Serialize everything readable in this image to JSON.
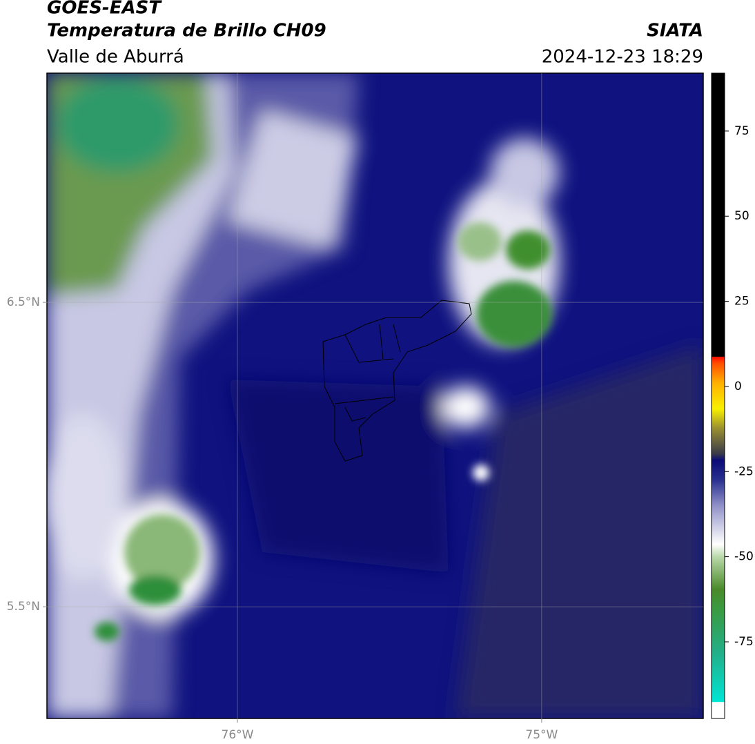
{
  "header": {
    "title": "GOES-EAST",
    "subtitle": "Temperatura de Brillo CH09",
    "region": "Valle de Aburrá",
    "source": "SIATA",
    "datetime": "2024-12-23 18:29"
  },
  "map": {
    "type": "map",
    "xlim": [
      -76.626,
      -74.469
    ],
    "ylim": [
      5.133,
      7.253
    ],
    "xticks": [
      {
        "value": -76,
        "label": "76°W"
      },
      {
        "value": -75,
        "label": "75°W"
      }
    ],
    "yticks": [
      {
        "value": 6.5,
        "label": "6.5°N"
      },
      {
        "value": 5.5,
        "label": "5.5°N"
      }
    ],
    "grid": true,
    "colorbar": {
      "lim": [
        -97.5,
        92
      ],
      "ticks": [
        75,
        50,
        25,
        0,
        -25,
        -50,
        -75
      ]
    }
  }
}
